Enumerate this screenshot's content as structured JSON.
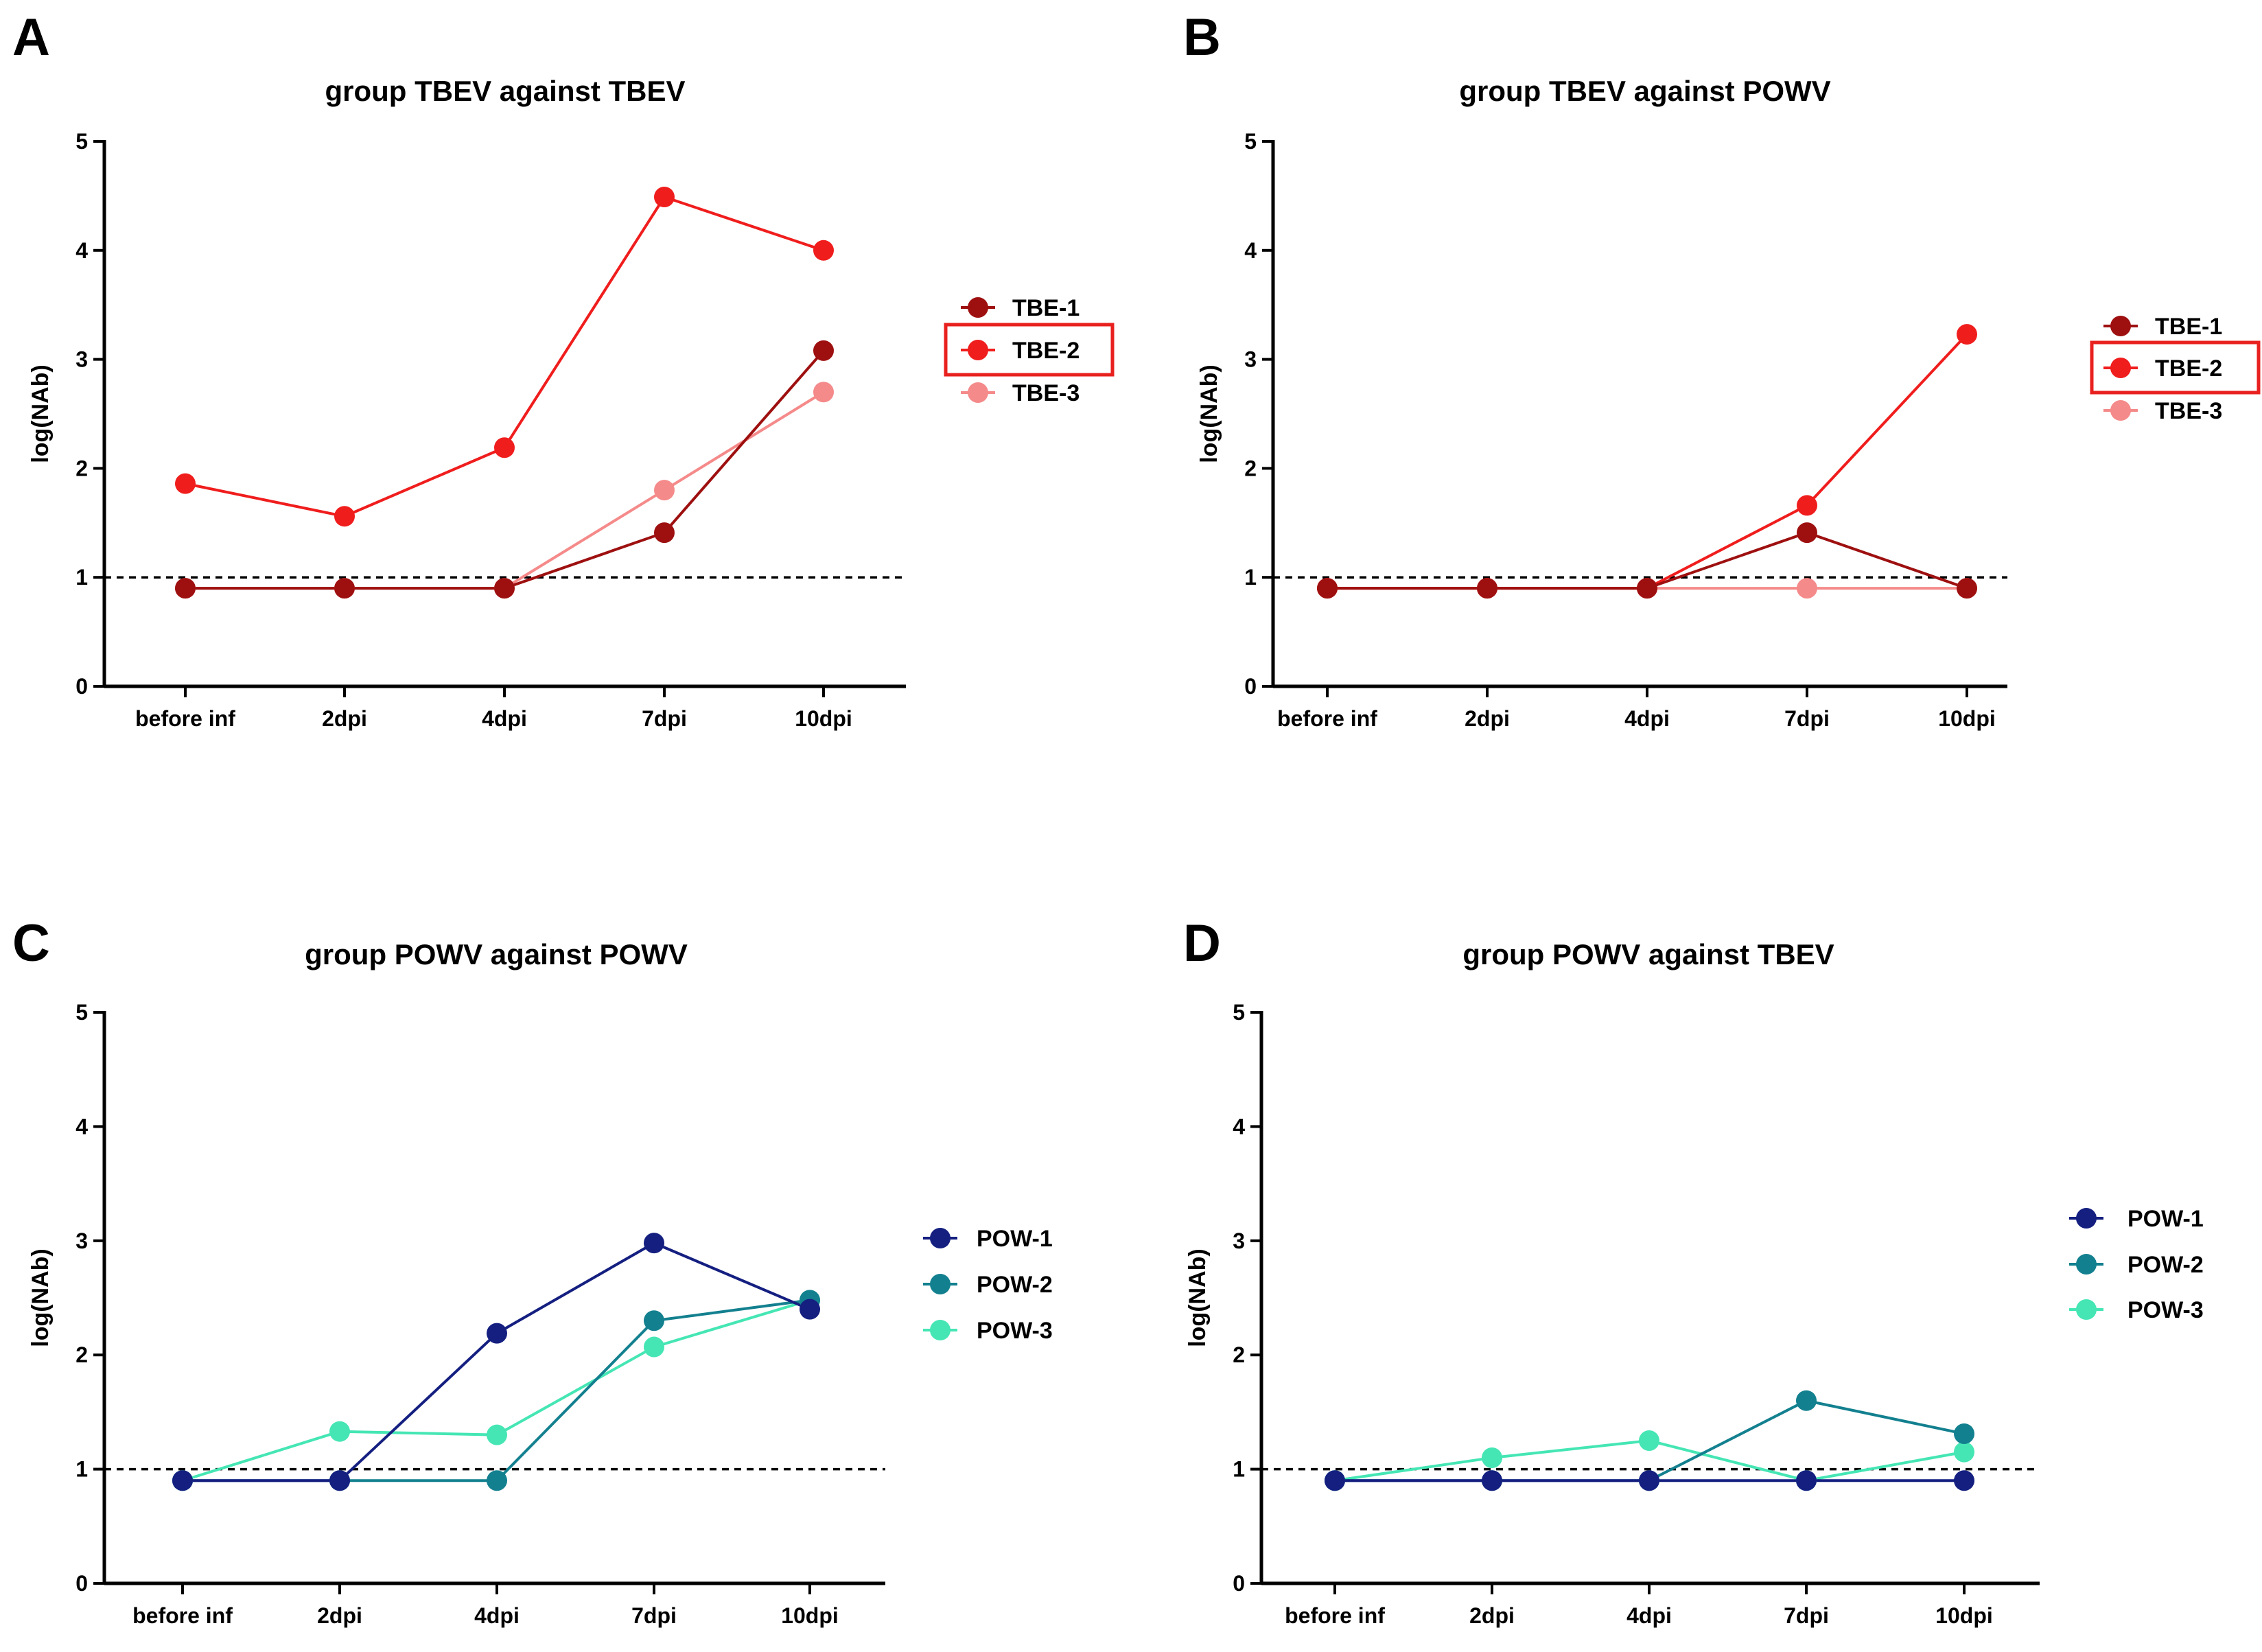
{
  "figure": {
    "panels": [
      "A",
      "B",
      "C",
      "D"
    ]
  },
  "chart_data": [
    {
      "panel": "A",
      "type": "line",
      "title": "group TBEV against TBEV",
      "xlabel": "",
      "ylabel": "log(NAb)",
      "categories": [
        "before inf",
        "2dpi",
        "4dpi",
        "7dpi",
        "10dpi"
      ],
      "ylim": [
        0,
        5
      ],
      "yticks": [
        "0",
        "1",
        "2",
        "3",
        "4",
        "5"
      ],
      "reference_line": 1,
      "highlight_series": "TBE-2",
      "highlight_color": "#e8211f",
      "series": [
        {
          "name": "TBE-3",
          "color": "#f58a8a",
          "values": [
            0.9,
            0.9,
            0.9,
            1.8,
            2.7
          ]
        },
        {
          "name": "TBE-2",
          "color": "#f01d1d",
          "values": [
            1.86,
            1.56,
            2.19,
            4.49,
            4.0
          ]
        },
        {
          "name": "TBE-1",
          "color": "#9e1010",
          "values": [
            0.9,
            0.9,
            0.9,
            1.41,
            3.08
          ]
        }
      ],
      "legend_order": [
        "TBE-1",
        "TBE-2",
        "TBE-3"
      ]
    },
    {
      "panel": "B",
      "type": "line",
      "title": "group TBEV against POWV",
      "xlabel": "",
      "ylabel": "log(NAb)",
      "categories": [
        "before inf",
        "2dpi",
        "4dpi",
        "7dpi",
        "10dpi"
      ],
      "ylim": [
        0,
        5
      ],
      "yticks": [
        "0",
        "1",
        "2",
        "3",
        "4",
        "5"
      ],
      "reference_line": 1,
      "highlight_series": "TBE-2",
      "highlight_color": "#e8211f",
      "series": [
        {
          "name": "TBE-3",
          "color": "#f58a8a",
          "values": [
            0.9,
            0.9,
            0.9,
            0.9,
            0.9
          ]
        },
        {
          "name": "TBE-2",
          "color": "#f01d1d",
          "values": [
            0.9,
            0.9,
            0.9,
            1.66,
            3.23
          ]
        },
        {
          "name": "TBE-1",
          "color": "#9e1010",
          "values": [
            0.9,
            0.9,
            0.9,
            1.41,
            0.9
          ]
        }
      ],
      "legend_order": [
        "TBE-1",
        "TBE-2",
        "TBE-3"
      ]
    },
    {
      "panel": "C",
      "type": "line",
      "title": "group POWV against POWV",
      "xlabel": "",
      "ylabel": "log(NAb)",
      "categories": [
        "before inf",
        "2dpi",
        "4dpi",
        "7dpi",
        "10dpi"
      ],
      "ylim": [
        0,
        5
      ],
      "yticks": [
        "0",
        "1",
        "2",
        "3",
        "4",
        "5"
      ],
      "reference_line": 1,
      "series": [
        {
          "name": "POW-3",
          "color": "#45e6b4",
          "values": [
            0.9,
            1.33,
            1.3,
            2.07,
            2.48
          ]
        },
        {
          "name": "POW-2",
          "color": "#13808f",
          "values": [
            0.9,
            0.9,
            0.9,
            2.3,
            2.48
          ]
        },
        {
          "name": "POW-1",
          "color": "#141f80",
          "values": [
            0.9,
            0.9,
            2.19,
            2.98,
            2.4
          ]
        }
      ],
      "legend_order": [
        "POW-1",
        "POW-2",
        "POW-3"
      ]
    },
    {
      "panel": "D",
      "type": "line",
      "title": "group POWV against TBEV",
      "xlabel": "",
      "ylabel": "log(NAb)",
      "categories": [
        "before inf",
        "2dpi",
        "4dpi",
        "7dpi",
        "10dpi"
      ],
      "ylim": [
        0,
        5
      ],
      "yticks": [
        "0",
        "1",
        "2",
        "3",
        "4",
        "5"
      ],
      "reference_line": 1,
      "series": [
        {
          "name": "POW-3",
          "color": "#45e6b4",
          "values": [
            0.9,
            1.1,
            1.25,
            0.9,
            1.15
          ]
        },
        {
          "name": "POW-2",
          "color": "#13808f",
          "values": [
            0.9,
            0.9,
            0.9,
            1.6,
            1.31
          ]
        },
        {
          "name": "POW-1",
          "color": "#141f80",
          "values": [
            0.9,
            0.9,
            0.9,
            0.9,
            0.9
          ]
        }
      ],
      "legend_order": [
        "POW-1",
        "POW-2",
        "POW-3"
      ]
    }
  ]
}
